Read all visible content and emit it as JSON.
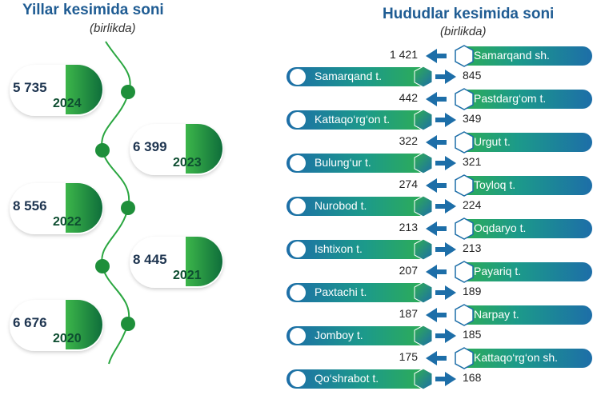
{
  "left_title": "Yillar kesimida soni",
  "left_subtitle": "(birlikda)",
  "right_title": "Hududlar kesimida soni",
  "right_subtitle": "(birlikda)",
  "colors": {
    "title": "#1f5c93",
    "green": "#21a33a",
    "teal": "#1c9a8a",
    "blue": "#1d6ea8",
    "value_text": "#1e3550"
  },
  "chart_data": [
    {
      "type": "bar",
      "title": "Yillar kesimida soni",
      "subtitle": "(birlikda)",
      "categories": [
        "2024",
        "2023",
        "2022",
        "2021",
        "2020"
      ],
      "values": [
        5735,
        6399,
        8556,
        8445,
        6676
      ],
      "labels": [
        "5 735",
        "6 399",
        "8 556",
        "8 445",
        "6 676"
      ]
    },
    {
      "type": "bar",
      "title": "Hududlar kesimida soni",
      "subtitle": "(birlikda)",
      "categories": [
        "Samarqand sh.",
        "Samarqand t.",
        "Pastdarg'om t.",
        "Kattaqo'rg'on t.",
        "Urgut t.",
        "Bulung'ur t.",
        "Toyloq t.",
        "Nurobod t.",
        "Oqdaryo t.",
        "Ishtixon t.",
        "Payariq t.",
        "Paxtachi t.",
        "Narpay t.",
        "Jomboy t.",
        "Kattaqo'rg'on sh.",
        "Qo'shrabot t."
      ],
      "display_labels": [
        "Samarqand sh.",
        "Samarqand t.",
        "Pastdarg‘om t.",
        "Kattaqo‘rg‘on t.",
        "Urgut t.",
        "Bulung‘ur t.",
        "Toyloq t.",
        "Nurobod t.",
        "Oqdaryo t.",
        "Ishtixon t.",
        "Payariq t.",
        "Paxtachi t.",
        "Narpay t.",
        "Jomboy t.",
        "Kattaqo‘rg‘on sh.",
        "Qo‘shrabot t."
      ],
      "values": [
        1421,
        845,
        442,
        349,
        322,
        321,
        274,
        224,
        213,
        213,
        207,
        189,
        187,
        185,
        175,
        168
      ],
      "value_labels": [
        "1 421",
        "845",
        "442",
        "349",
        "322",
        "321",
        "274",
        "224",
        "213",
        "213",
        "207",
        "189",
        "187",
        "185",
        "175",
        "168"
      ]
    }
  ]
}
